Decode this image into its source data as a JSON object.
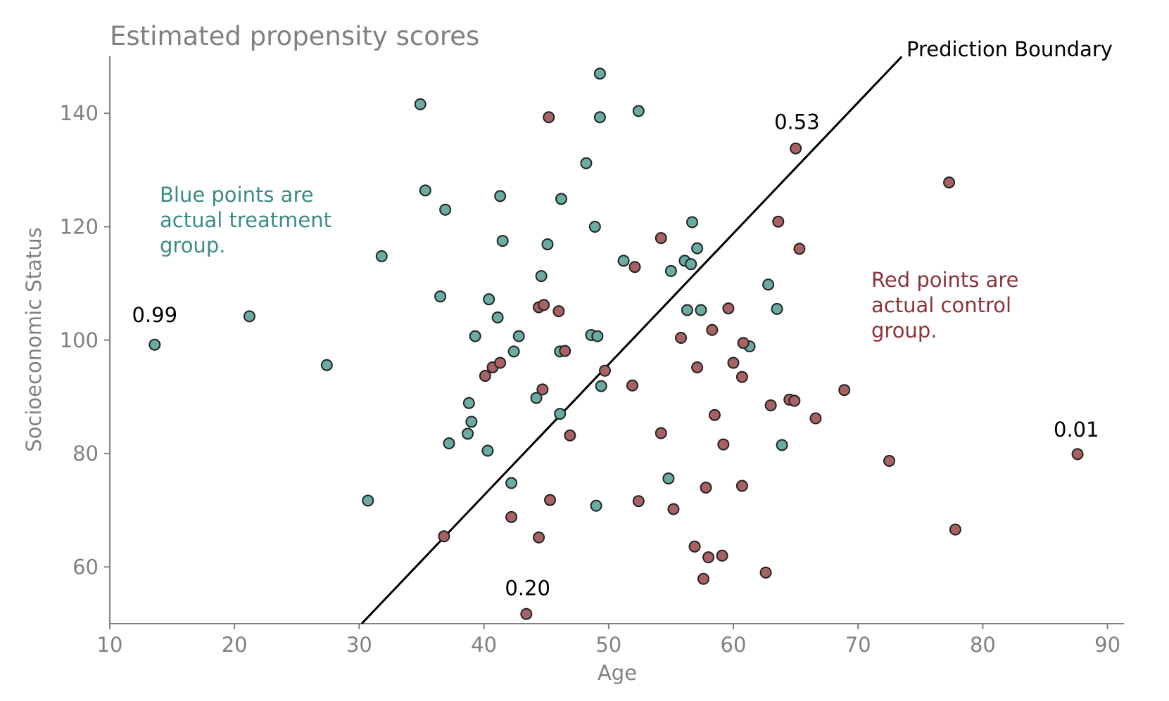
{
  "chart_data": {
    "type": "scatter",
    "title": "Estimated propensity scores",
    "xlabel": "Age",
    "ylabel": "Socioeconomic Status",
    "xlim": [
      10,
      91
    ],
    "ylim": [
      50,
      150
    ],
    "xticks": [
      10,
      20,
      30,
      40,
      50,
      60,
      70,
      80,
      90
    ],
    "yticks": [
      60,
      80,
      100,
      120,
      140
    ],
    "grid": false,
    "colors": {
      "treatment": "#6aaba2",
      "control": "#a86263",
      "treatment_text": "#3a8c84",
      "control_text": "#8b3439",
      "axis": "#808080",
      "boundary": "#000000"
    },
    "boundary": {
      "label": "Prediction Boundary",
      "x": [
        30.2,
        73.5
      ],
      "y": [
        50,
        150
      ]
    },
    "annotations": {
      "treatment_note": [
        "Blue points are",
        "actual treatment",
        "group."
      ],
      "control_note": [
        "Red points are",
        "actual control",
        "group."
      ],
      "scores": [
        {
          "text": "0.99",
          "x": 13.6,
          "y": 103.2
        },
        {
          "text": "0.53",
          "x": 65.1,
          "y": 137.2
        },
        {
          "text": "0.20",
          "x": 43.5,
          "y": 55.0
        },
        {
          "text": "0.01",
          "x": 87.5,
          "y": 83.0
        }
      ]
    },
    "series": [
      {
        "name": "treatment",
        "points": [
          [
            13.6,
            99.2
          ],
          [
            21.2,
            104.2
          ],
          [
            27.4,
            95.6
          ],
          [
            30.7,
            71.7
          ],
          [
            31.8,
            114.8
          ],
          [
            34.9,
            141.6
          ],
          [
            35.3,
            126.4
          ],
          [
            36.5,
            107.7
          ],
          [
            36.9,
            123.0
          ],
          [
            37.2,
            81.8
          ],
          [
            38.7,
            83.5
          ],
          [
            38.8,
            88.9
          ],
          [
            39.0,
            85.6
          ],
          [
            39.3,
            100.7
          ],
          [
            40.3,
            80.5
          ],
          [
            40.4,
            107.2
          ],
          [
            41.1,
            104.0
          ],
          [
            41.3,
            125.4
          ],
          [
            41.5,
            117.5
          ],
          [
            42.2,
            74.8
          ],
          [
            42.4,
            98.0
          ],
          [
            42.8,
            100.7
          ],
          [
            44.2,
            89.8
          ],
          [
            44.6,
            111.3
          ],
          [
            45.1,
            116.9
          ],
          [
            46.1,
            87.0
          ],
          [
            46.1,
            98.0
          ],
          [
            46.2,
            124.9
          ],
          [
            48.2,
            131.2
          ],
          [
            48.6,
            100.9
          ],
          [
            48.9,
            120.0
          ],
          [
            49.0,
            70.8
          ],
          [
            49.1,
            100.7
          ],
          [
            49.3,
            147.0
          ],
          [
            49.3,
            139.3
          ],
          [
            49.4,
            91.9
          ],
          [
            51.2,
            114.0
          ],
          [
            52.4,
            140.4
          ],
          [
            54.8,
            75.6
          ],
          [
            55.0,
            112.2
          ],
          [
            56.1,
            114.0
          ],
          [
            56.3,
            105.3
          ],
          [
            56.6,
            113.4
          ],
          [
            56.7,
            120.8
          ],
          [
            57.1,
            116.2
          ],
          [
            57.4,
            105.3
          ],
          [
            61.3,
            98.9
          ],
          [
            62.8,
            109.8
          ],
          [
            63.5,
            105.5
          ],
          [
            63.9,
            81.5
          ]
        ]
      },
      {
        "name": "control",
        "points": [
          [
            36.8,
            65.4
          ],
          [
            40.1,
            93.7
          ],
          [
            40.7,
            95.2
          ],
          [
            41.3,
            96.0
          ],
          [
            42.2,
            68.8
          ],
          [
            44.4,
            105.8
          ],
          [
            44.4,
            65.2
          ],
          [
            44.7,
            91.3
          ],
          [
            44.8,
            106.2
          ],
          [
            45.2,
            139.3
          ],
          [
            45.3,
            71.8
          ],
          [
            46.0,
            105.1
          ],
          [
            46.5,
            98.1
          ],
          [
            46.9,
            83.2
          ],
          [
            49.7,
            94.6
          ],
          [
            51.9,
            92.0
          ],
          [
            52.1,
            112.9
          ],
          [
            52.4,
            71.6
          ],
          [
            54.2,
            118.0
          ],
          [
            54.2,
            83.6
          ],
          [
            55.2,
            70.2
          ],
          [
            55.8,
            100.4
          ],
          [
            56.9,
            63.6
          ],
          [
            57.1,
            95.2
          ],
          [
            57.6,
            57.9
          ],
          [
            57.8,
            74.0
          ],
          [
            58.0,
            61.7
          ],
          [
            58.3,
            101.8
          ],
          [
            58.5,
            86.8
          ],
          [
            59.1,
            62.0
          ],
          [
            59.2,
            81.6
          ],
          [
            59.6,
            105.6
          ],
          [
            60.0,
            96.0
          ],
          [
            60.7,
            93.5
          ],
          [
            60.7,
            74.3
          ],
          [
            60.8,
            99.5
          ],
          [
            62.6,
            59.0
          ],
          [
            63.0,
            88.5
          ],
          [
            63.6,
            120.9
          ],
          [
            64.5,
            89.5
          ],
          [
            64.9,
            89.3
          ],
          [
            65.0,
            133.8
          ],
          [
            65.3,
            116.1
          ],
          [
            66.6,
            86.2
          ],
          [
            68.9,
            91.2
          ],
          [
            72.5,
            78.7
          ],
          [
            77.3,
            127.8
          ],
          [
            77.8,
            66.6
          ],
          [
            87.6,
            79.9
          ],
          [
            43.4,
            51.7
          ]
        ]
      }
    ]
  }
}
